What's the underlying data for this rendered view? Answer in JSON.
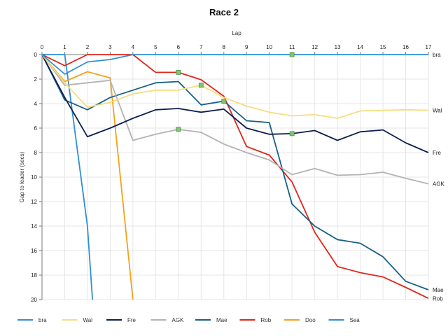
{
  "chart_data": {
    "type": "line",
    "title": "Race 2",
    "xlabel": "Lap",
    "ylabel": "Gap to leader (secs)",
    "xlim": [
      0,
      17
    ],
    "ylim": [
      0,
      20
    ],
    "y_inverted": true,
    "x_ticks": [
      0,
      1,
      2,
      3,
      4,
      5,
      6,
      7,
      8,
      9,
      10,
      11,
      12,
      13,
      14,
      15,
      16,
      17
    ],
    "y_ticks": [
      0,
      2,
      4,
      6,
      8,
      10,
      12,
      14,
      16,
      18,
      20
    ],
    "grid": true,
    "legend_position": "bottom",
    "series": [
      {
        "name": "bra",
        "color": "#2f8fd6",
        "points": [
          [
            0,
            0
          ],
          [
            1,
            1.6
          ],
          [
            2,
            0.6
          ],
          [
            3,
            0.4
          ],
          [
            4,
            0
          ],
          [
            5,
            0
          ],
          [
            6,
            0
          ],
          [
            7,
            0
          ],
          [
            8,
            0
          ],
          [
            9,
            0
          ],
          [
            10,
            0
          ],
          [
            11,
            0
          ],
          [
            12,
            0
          ],
          [
            13,
            0
          ],
          [
            14,
            0
          ],
          [
            15,
            0
          ],
          [
            16,
            0
          ],
          [
            17,
            0
          ]
        ],
        "end_label": "bra"
      },
      {
        "name": "Wal",
        "color": "#f7dd7e",
        "points": [
          [
            0,
            0
          ],
          [
            1,
            2.3
          ],
          [
            2,
            4.3
          ],
          [
            3,
            3.9
          ],
          [
            4,
            3.2
          ],
          [
            5,
            2.9
          ],
          [
            6,
            2.9
          ],
          [
            7,
            2.5
          ],
          [
            8,
            3.5
          ],
          [
            9,
            4.2
          ],
          [
            10,
            4.7
          ],
          [
            11,
            5.0
          ],
          [
            12,
            4.9
          ],
          [
            13,
            5.2
          ],
          [
            14,
            4.6
          ],
          [
            15,
            4.55
          ],
          [
            16,
            4.5
          ],
          [
            17,
            4.55
          ]
        ],
        "end_label": "Wal"
      },
      {
        "name": "Fre",
        "color": "#0e1f4f",
        "points": [
          [
            0,
            0
          ],
          [
            1,
            3.5
          ],
          [
            2,
            6.7
          ],
          [
            3,
            6.0
          ],
          [
            4,
            5.2
          ],
          [
            5,
            4.5
          ],
          [
            6,
            4.4
          ],
          [
            7,
            4.7
          ],
          [
            8,
            4.45
          ],
          [
            9,
            6.0
          ],
          [
            10,
            6.5
          ],
          [
            11,
            6.45
          ],
          [
            12,
            6.2
          ],
          [
            13,
            7.0
          ],
          [
            14,
            6.3
          ],
          [
            15,
            6.15
          ],
          [
            16,
            7.2
          ],
          [
            17,
            8.0
          ]
        ],
        "end_label": "Fre"
      },
      {
        "name": "AGK",
        "color": "#b3b3b3",
        "points": [
          [
            0,
            0
          ],
          [
            1,
            2.5
          ],
          [
            2,
            2.3
          ],
          [
            3,
            2.1
          ],
          [
            4,
            7.0
          ],
          [
            5,
            6.5
          ],
          [
            6,
            6.1
          ],
          [
            7,
            6.35
          ],
          [
            8,
            7.3
          ],
          [
            9,
            8.0
          ],
          [
            10,
            8.6
          ],
          [
            11,
            9.8
          ],
          [
            12,
            9.3
          ],
          [
            13,
            9.85
          ],
          [
            14,
            9.8
          ],
          [
            15,
            9.6
          ],
          [
            16,
            10.1
          ],
          [
            17,
            10.55
          ]
        ],
        "end_label": "AGK"
      },
      {
        "name": "Mae",
        "color": "#17608a",
        "points": [
          [
            0,
            0
          ],
          [
            1,
            3.7
          ],
          [
            2,
            4.5
          ],
          [
            3,
            3.5
          ],
          [
            4,
            2.9
          ],
          [
            5,
            2.3
          ],
          [
            6,
            2.2
          ],
          [
            7,
            4.1
          ],
          [
            8,
            3.8
          ],
          [
            9,
            5.4
          ],
          [
            10,
            5.55
          ],
          [
            11,
            12.2
          ],
          [
            12,
            14.0
          ],
          [
            13,
            15.1
          ],
          [
            14,
            15.4
          ],
          [
            15,
            16.5
          ],
          [
            16,
            18.5
          ],
          [
            17,
            19.2
          ]
        ],
        "end_label": "Mae"
      },
      {
        "name": "Rob",
        "color": "#e0261a",
        "points": [
          [
            0,
            0
          ],
          [
            1,
            0.9
          ],
          [
            2,
            0
          ],
          [
            3,
            0
          ],
          [
            4,
            0
          ],
          [
            5,
            1.45
          ],
          [
            6,
            1.45
          ],
          [
            7,
            2.05
          ],
          [
            8,
            3.4
          ],
          [
            9,
            7.5
          ],
          [
            10,
            8.2
          ],
          [
            11,
            10.4
          ],
          [
            12,
            14.5
          ],
          [
            13,
            17.3
          ],
          [
            14,
            17.8
          ],
          [
            15,
            18.15
          ],
          [
            16,
            19.0
          ],
          [
            17,
            19.9
          ]
        ],
        "end_label": "Rob"
      },
      {
        "name": "Doo",
        "color": "#f2a21c",
        "points": [
          [
            0,
            0
          ],
          [
            1,
            2.2
          ],
          [
            2,
            1.4
          ],
          [
            3,
            1.9
          ],
          [
            4,
            20
          ]
        ],
        "end_label": ""
      },
      {
        "name": "Sea",
        "color": "#2f8fd6",
        "points": [
          [
            0,
            0
          ],
          [
            1,
            0
          ],
          [
            2,
            14
          ],
          [
            2.22,
            20
          ]
        ],
        "end_label": ""
      }
    ],
    "markers": [
      {
        "x": 6,
        "y": 1.45
      },
      {
        "x": 7,
        "y": 2.5
      },
      {
        "x": 8,
        "y": 3.8
      },
      {
        "x": 11,
        "y": 0
      },
      {
        "x": 11,
        "y": 6.45
      },
      {
        "x": 6,
        "y": 6.1
      }
    ],
    "marker_color": "#7bc96f"
  }
}
